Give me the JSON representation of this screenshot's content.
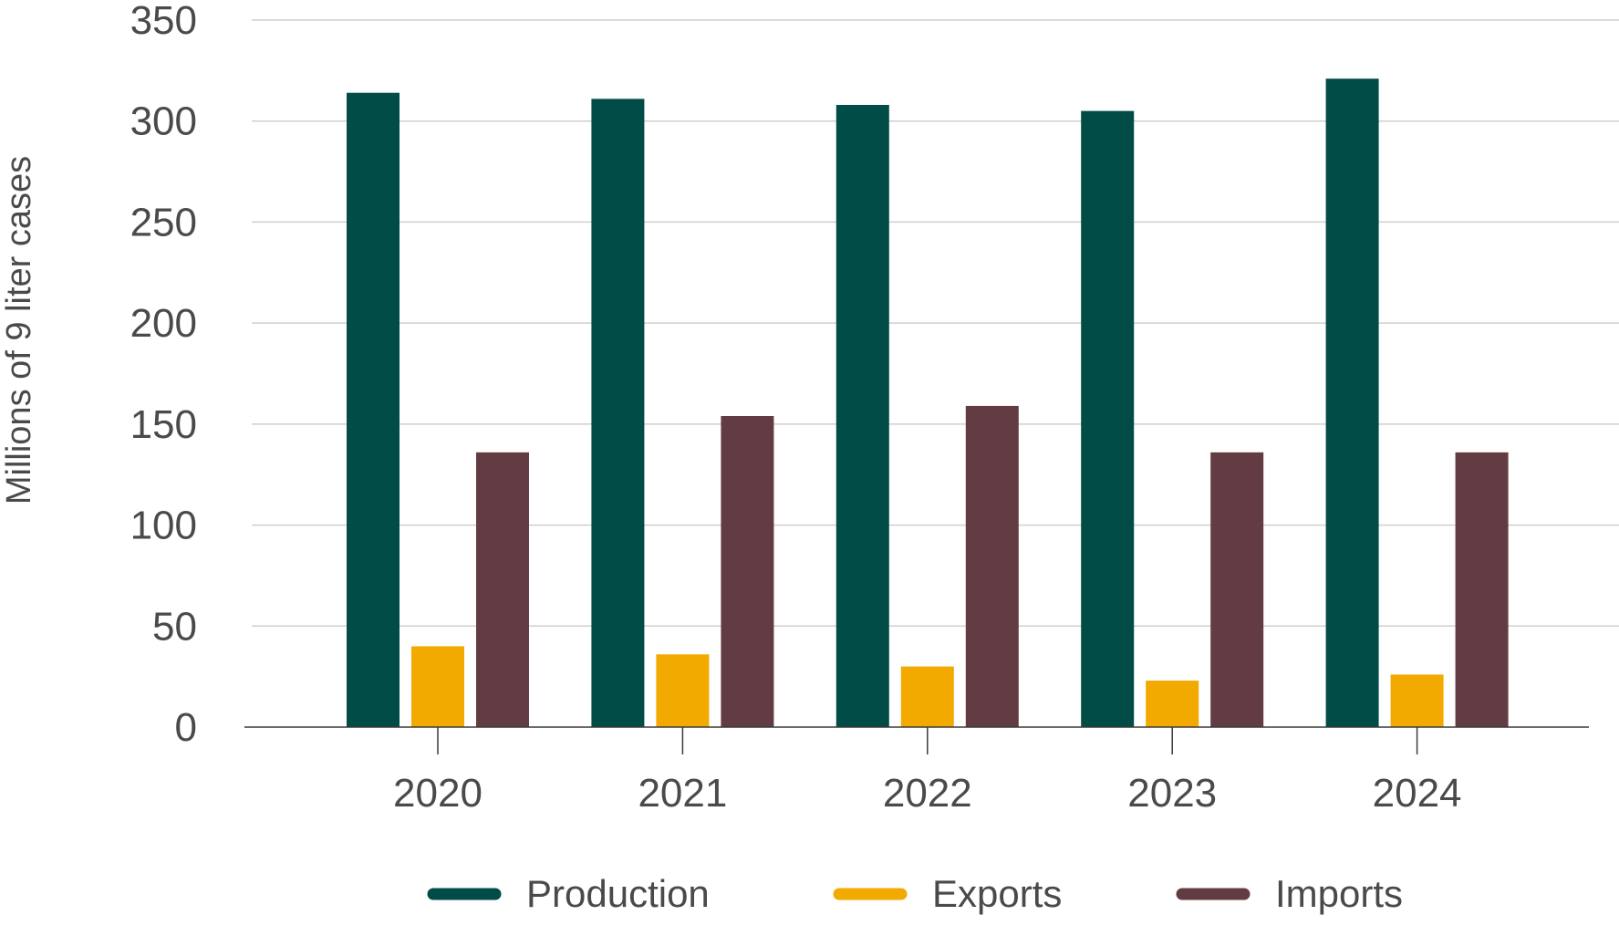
{
  "chart_data": {
    "type": "bar",
    "ylabel": "Millions of 9 liter cases",
    "xlabel": "",
    "categories": [
      "2020",
      "2021",
      "2022",
      "2023",
      "2024"
    ],
    "ylim": [
      0,
      350
    ],
    "yticks": [
      0,
      50,
      100,
      150,
      200,
      250,
      300,
      350
    ],
    "grid": true,
    "legend_position": "bottom",
    "series": [
      {
        "name": "Production",
        "color": "#024c48",
        "values": [
          314,
          311,
          308,
          305,
          321
        ]
      },
      {
        "name": "Exports",
        "color": "#f2aa00",
        "values": [
          40,
          36,
          30,
          23,
          26
        ]
      },
      {
        "name": "Imports",
        "color": "#633c43",
        "values": [
          136,
          154,
          159,
          136,
          136
        ]
      }
    ]
  }
}
